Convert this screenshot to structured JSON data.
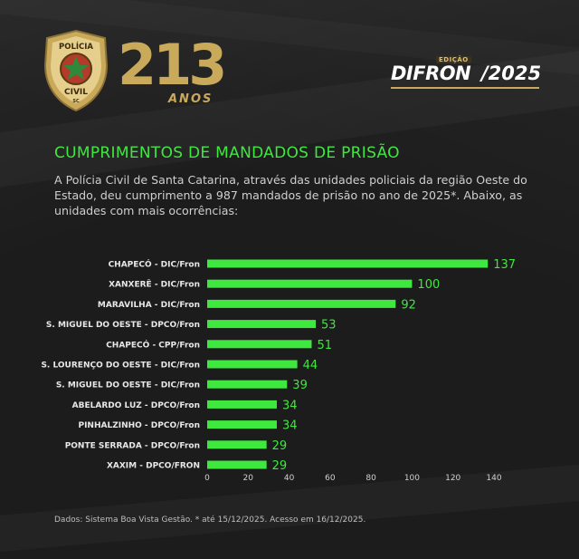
{
  "header": {
    "badge_top": "POLÍCIA",
    "badge_bottom": "CIVIL",
    "badge_state": "SC",
    "anniversary_number": "213",
    "anniversary_word": "ANOS",
    "edition_tag": "EDIÇÃO",
    "edition_name": "DIFRON",
    "edition_year": "/2025"
  },
  "colors": {
    "bar": "#3ee83e",
    "title": "#3ee83e",
    "gold": "#c9a95a",
    "background": "#1b1b1b"
  },
  "title": "CUMPRIMENTOS DE MANDADOS DE PRISÃO",
  "description": "A Polícia Civil de Santa Catarina, através das unidades policiais da região Oeste do Estado, deu cumprimento a 987 mandados de prisão no ano de 2025*. Abaixo, as unidades com mais ocorrências:",
  "source": "Dados: Sistema Boa Vista Gestão. * até 15/12/2025. Acesso em 16/12/2025.",
  "chart_data": {
    "type": "bar",
    "orientation": "horizontal",
    "categories": [
      "CHAPECÓ - DIC/Fron",
      "XANXERÊ - DIC/Fron",
      "MARAVILHA - DIC/Fron",
      "S. MIGUEL DO OESTE - DPCO/Fron",
      "CHAPECÓ - CPP/Fron",
      "S. LOURENÇO DO OESTE - DIC/Fron",
      "S. MIGUEL DO OESTE - DIC/Fron",
      "ABELARDO LUZ - DPCO/Fron",
      "PINHALZINHO - DPCO/Fron",
      "PONTE SERRADA - DPCO/Fron",
      "XAXIM - DPCO/FRON"
    ],
    "values": [
      137,
      100,
      92,
      53,
      51,
      44,
      39,
      34,
      34,
      29,
      29
    ],
    "xlim": [
      0,
      140
    ],
    "xticks": [
      0,
      20,
      40,
      60,
      80,
      100,
      120,
      140
    ],
    "grid": false,
    "data_labels": true
  }
}
